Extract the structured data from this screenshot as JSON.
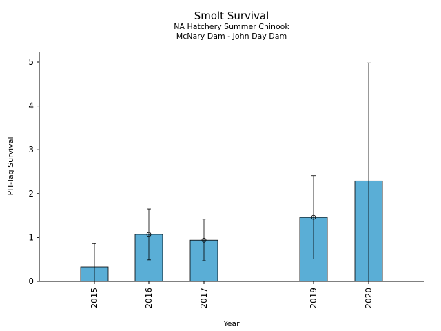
{
  "chart_data": {
    "type": "bar",
    "title": "Smolt Survival",
    "subtitle_lines": [
      "NA Hatchery Summer Chinook",
      "McNary Dam - John Day Dam"
    ],
    "xlabel": "Year",
    "ylabel": "PIT-Tag Survival",
    "categories": [
      "2015",
      "2016",
      "2017",
      "2019",
      "2020"
    ],
    "values": [
      0.33,
      1.07,
      0.94,
      1.46,
      2.29
    ],
    "error_low": [
      0.0,
      0.49,
      0.47,
      0.51,
      0.0
    ],
    "error_high": [
      0.86,
      1.65,
      1.42,
      2.41,
      4.98
    ],
    "point_marker": [
      false,
      true,
      true,
      true,
      false
    ],
    "yticks": [
      0,
      1,
      2,
      3,
      4,
      5
    ],
    "ylim": [
      0,
      5.25
    ],
    "bar_color": "#5aaed6",
    "grid": false,
    "legend": "none"
  }
}
